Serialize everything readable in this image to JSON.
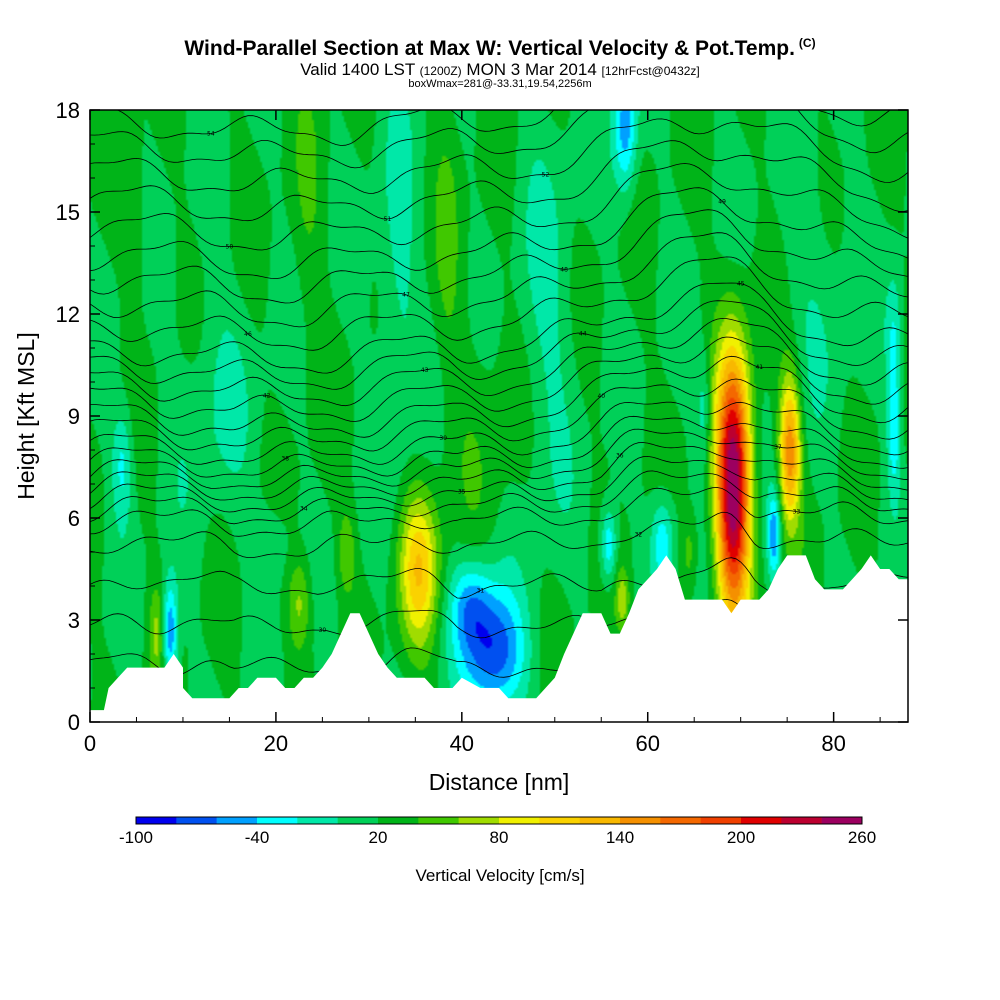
{
  "title": "Wind-Parallel Section at Max W: Vertical Velocity & Pot.Temp.",
  "copyright_mark": "(C)",
  "subtitle_valid": "Valid 1400 LST",
  "subtitle_z": "(1200Z)",
  "subtitle_date": "MON 3 Mar 2014",
  "subtitle_fcst": "[12hrFcst@0432z]",
  "subtitle_box": "boxWmax=281@-33.31,19.54,2256m",
  "colors": {
    "background": "#ffffff",
    "terrain": "#ffffff",
    "contour": "#000000",
    "axis": "#000000"
  },
  "chart_data": {
    "type": "heatmap",
    "xlabel": "Distance [nm]",
    "ylabel": "Height [Kft MSL]",
    "xlim": [
      0,
      88
    ],
    "ylim": [
      0,
      18
    ],
    "xticks": [
      "0",
      "20",
      "40",
      "60",
      "80"
    ],
    "xtick_values": [
      0,
      20,
      40,
      60,
      80
    ],
    "yticks": [
      "0",
      "3",
      "6",
      "9",
      "12",
      "15",
      "18"
    ],
    "ytick_values": [
      0,
      3,
      6,
      9,
      12,
      15,
      18
    ],
    "background_w": 20,
    "terrain_kft": [
      [
        0,
        0.35
      ],
      [
        1.5,
        0.35
      ],
      [
        2,
        1.0
      ],
      [
        3,
        1.3
      ],
      [
        4,
        1.6
      ],
      [
        8,
        1.6
      ],
      [
        9,
        2.0
      ],
      [
        10,
        1.6
      ],
      [
        10,
        1.0
      ],
      [
        11,
        0.7
      ],
      [
        15,
        0.7
      ],
      [
        16,
        1.0
      ],
      [
        17,
        1.0
      ],
      [
        18,
        1.3
      ],
      [
        20,
        1.3
      ],
      [
        21,
        1.0
      ],
      [
        22,
        1.0
      ],
      [
        23,
        1.3
      ],
      [
        24,
        1.3
      ],
      [
        25,
        1.6
      ],
      [
        26,
        2.0
      ],
      [
        27,
        2.6
      ],
      [
        28,
        3.2
      ],
      [
        29,
        3.2
      ],
      [
        30,
        2.6
      ],
      [
        31,
        2.0
      ],
      [
        32,
        1.6
      ],
      [
        33,
        1.3
      ],
      [
        36,
        1.3
      ],
      [
        37,
        1.0
      ],
      [
        39,
        1.0
      ],
      [
        40,
        1.3
      ],
      [
        42,
        1.0
      ],
      [
        44,
        1.0
      ],
      [
        45,
        0.7
      ],
      [
        48,
        0.7
      ],
      [
        49,
        1.0
      ],
      [
        50,
        1.3
      ],
      [
        51,
        2.0
      ],
      [
        52,
        2.6
      ],
      [
        53,
        3.2
      ],
      [
        55,
        3.2
      ],
      [
        56,
        2.6
      ],
      [
        57,
        2.6
      ],
      [
        58,
        3.2
      ],
      [
        59,
        3.9
      ],
      [
        60,
        4.2
      ],
      [
        61,
        4.5
      ],
      [
        62,
        4.9
      ],
      [
        63,
        4.5
      ],
      [
        64,
        3.6
      ],
      [
        68,
        3.6
      ],
      [
        69,
        3.2
      ],
      [
        70,
        3.6
      ],
      [
        72,
        3.6
      ],
      [
        73,
        3.9
      ],
      [
        74,
        4.5
      ],
      [
        75,
        4.9
      ],
      [
        77,
        4.9
      ],
      [
        78,
        4.2
      ],
      [
        79,
        3.9
      ],
      [
        81,
        3.9
      ],
      [
        82,
        4.2
      ],
      [
        83,
        4.5
      ],
      [
        84,
        4.9
      ],
      [
        85,
        4.5
      ],
      [
        86,
        4.5
      ],
      [
        87,
        4.2
      ],
      [
        88,
        4.2
      ]
    ],
    "blobs": [
      {
        "x": 69.2,
        "y": 6.9,
        "sx": 1.3,
        "sy": 2.7,
        "amp": 245
      },
      {
        "x": 75.3,
        "y": 8.0,
        "sx": 0.8,
        "sy": 1.5,
        "amp": 135
      },
      {
        "x": 35.4,
        "y": 4.5,
        "sx": 1.5,
        "sy": 1.6,
        "amp": 90
      },
      {
        "x": 27.6,
        "y": 5.0,
        "sx": 0.7,
        "sy": 0.9,
        "amp": 35
      },
      {
        "x": 22.6,
        "y": 3.5,
        "sx": 0.9,
        "sy": 1.0,
        "amp": 45
      },
      {
        "x": 7.2,
        "y": 2.6,
        "sx": 0.6,
        "sy": 1.0,
        "amp": 40
      },
      {
        "x": 57.3,
        "y": 3.6,
        "sx": 0.5,
        "sy": 0.6,
        "amp": 50
      },
      {
        "x": 64.5,
        "y": 5.0,
        "sx": 0.6,
        "sy": 0.8,
        "amp": 30
      },
      {
        "x": 5.0,
        "y": 15.0,
        "sx": 0.5,
        "sy": 2.0,
        "amp": 20
      },
      {
        "x": 43.5,
        "y": 2.0,
        "sx": 2.2,
        "sy": 1.3,
        "amp": -95
      },
      {
        "x": 41.0,
        "y": 3.4,
        "sx": 1.6,
        "sy": 1.0,
        "amp": -60
      },
      {
        "x": 8.6,
        "y": 2.6,
        "sx": 0.6,
        "sy": 1.1,
        "amp": -85
      },
      {
        "x": 73.6,
        "y": 5.5,
        "sx": 0.5,
        "sy": 0.9,
        "amp": -75
      },
      {
        "x": 61.6,
        "y": 5.3,
        "sx": 0.9,
        "sy": 1.0,
        "amp": -60
      },
      {
        "x": 55.8,
        "y": 5.2,
        "sx": 0.6,
        "sy": 0.8,
        "amp": -65
      },
      {
        "x": 57.6,
        "y": 17.5,
        "sx": 0.9,
        "sy": 1.4,
        "amp": -75
      },
      {
        "x": 3.5,
        "y": 7.6,
        "sx": 0.8,
        "sy": 1.2,
        "amp": -45
      },
      {
        "x": 19.5,
        "y": 5.2,
        "sx": 1.5,
        "sy": 0.9,
        "amp": -25
      },
      {
        "x": 86.5,
        "y": 11.0,
        "sx": 0.6,
        "sy": 1.5,
        "amp": -45
      },
      {
        "x": 86.5,
        "y": 8.3,
        "sx": 0.5,
        "sy": 1.2,
        "amp": -45
      },
      {
        "x": 66.0,
        "y": 9.2,
        "sx": 0.5,
        "sy": 1.2,
        "amp": -35
      },
      {
        "x": 49.0,
        "y": 11.5,
        "sx": 2.2,
        "sy": 4.0,
        "amp": -25
      },
      {
        "x": 13.5,
        "y": 9.5,
        "sx": 3.0,
        "sy": 2.5,
        "amp": -20
      },
      {
        "x": 43.0,
        "y": 9.0,
        "sx": 3.0,
        "sy": 3.0,
        "amp": 12
      },
      {
        "x": 78.5,
        "y": 13.0,
        "sx": 3.0,
        "sy": 3.0,
        "amp": -15
      },
      {
        "x": 33.0,
        "y": 12.5,
        "sx": 1.5,
        "sy": 4.0,
        "amp": -30
      },
      {
        "x": 23.5,
        "y": 15.0,
        "sx": 1.2,
        "sy": 3.0,
        "amp": 15
      },
      {
        "x": 38.5,
        "y": 14.5,
        "sx": 1.0,
        "sy": 3.0,
        "amp": 18
      }
    ],
    "theta_levels": [
      {
        "base": 1.6,
        "label": "29"
      },
      {
        "base": 2.8,
        "label": "30"
      },
      {
        "base": 4.0,
        "label": "31"
      },
      {
        "base": 5.2,
        "label": "32"
      },
      {
        "base": 5.9,
        "label": "33"
      },
      {
        "base": 6.3,
        "label": "34"
      },
      {
        "base": 6.65,
        "label": "35"
      },
      {
        "base": 7.0,
        "label": "36"
      },
      {
        "base": 7.35,
        "label": "37"
      },
      {
        "base": 7.7,
        "label": "38"
      },
      {
        "base": 8.1,
        "label": "39"
      },
      {
        "base": 8.55,
        "label": "40"
      },
      {
        "base": 9.0,
        "label": "41"
      },
      {
        "base": 9.5,
        "label": "42"
      },
      {
        "base": 10.0,
        "label": "43"
      },
      {
        "base": 10.5,
        "label": "44"
      },
      {
        "base": 11.0,
        "label": "45"
      },
      {
        "base": 11.7,
        "label": "46"
      },
      {
        "base": 12.4,
        "label": "47"
      },
      {
        "base": 13.1,
        "label": "48"
      },
      {
        "base": 13.8,
        "label": "49"
      },
      {
        "base": 14.6,
        "label": "50"
      },
      {
        "base": 15.4,
        "label": "51"
      },
      {
        "base": 16.2,
        "label": "52"
      },
      {
        "base": 17.0,
        "label": "53"
      },
      {
        "base": 17.7,
        "label": "54"
      }
    ],
    "colorbar": {
      "label": "Vertical Velocity [cm/s]",
      "tick_labels": [
        "-100",
        "-40",
        "20",
        "80",
        "140",
        "200",
        "260"
      ],
      "tick_values": [
        -100,
        -40,
        20,
        80,
        140,
        200,
        260
      ],
      "boundaries": [
        -100,
        -80,
        -60,
        -40,
        -20,
        0,
        20,
        40,
        60,
        80,
        100,
        120,
        140,
        160,
        180,
        200,
        220,
        240,
        260
      ],
      "colors": [
        "#0000ee",
        "#0050f0",
        "#00a0ff",
        "#00ffff",
        "#00e8a8",
        "#00d058",
        "#00b418",
        "#40c800",
        "#a0dc00",
        "#f0f000",
        "#fad200",
        "#f8b800",
        "#f59000",
        "#f46800",
        "#f04000",
        "#e00000",
        "#bc0030",
        "#9c0060"
      ]
    }
  }
}
